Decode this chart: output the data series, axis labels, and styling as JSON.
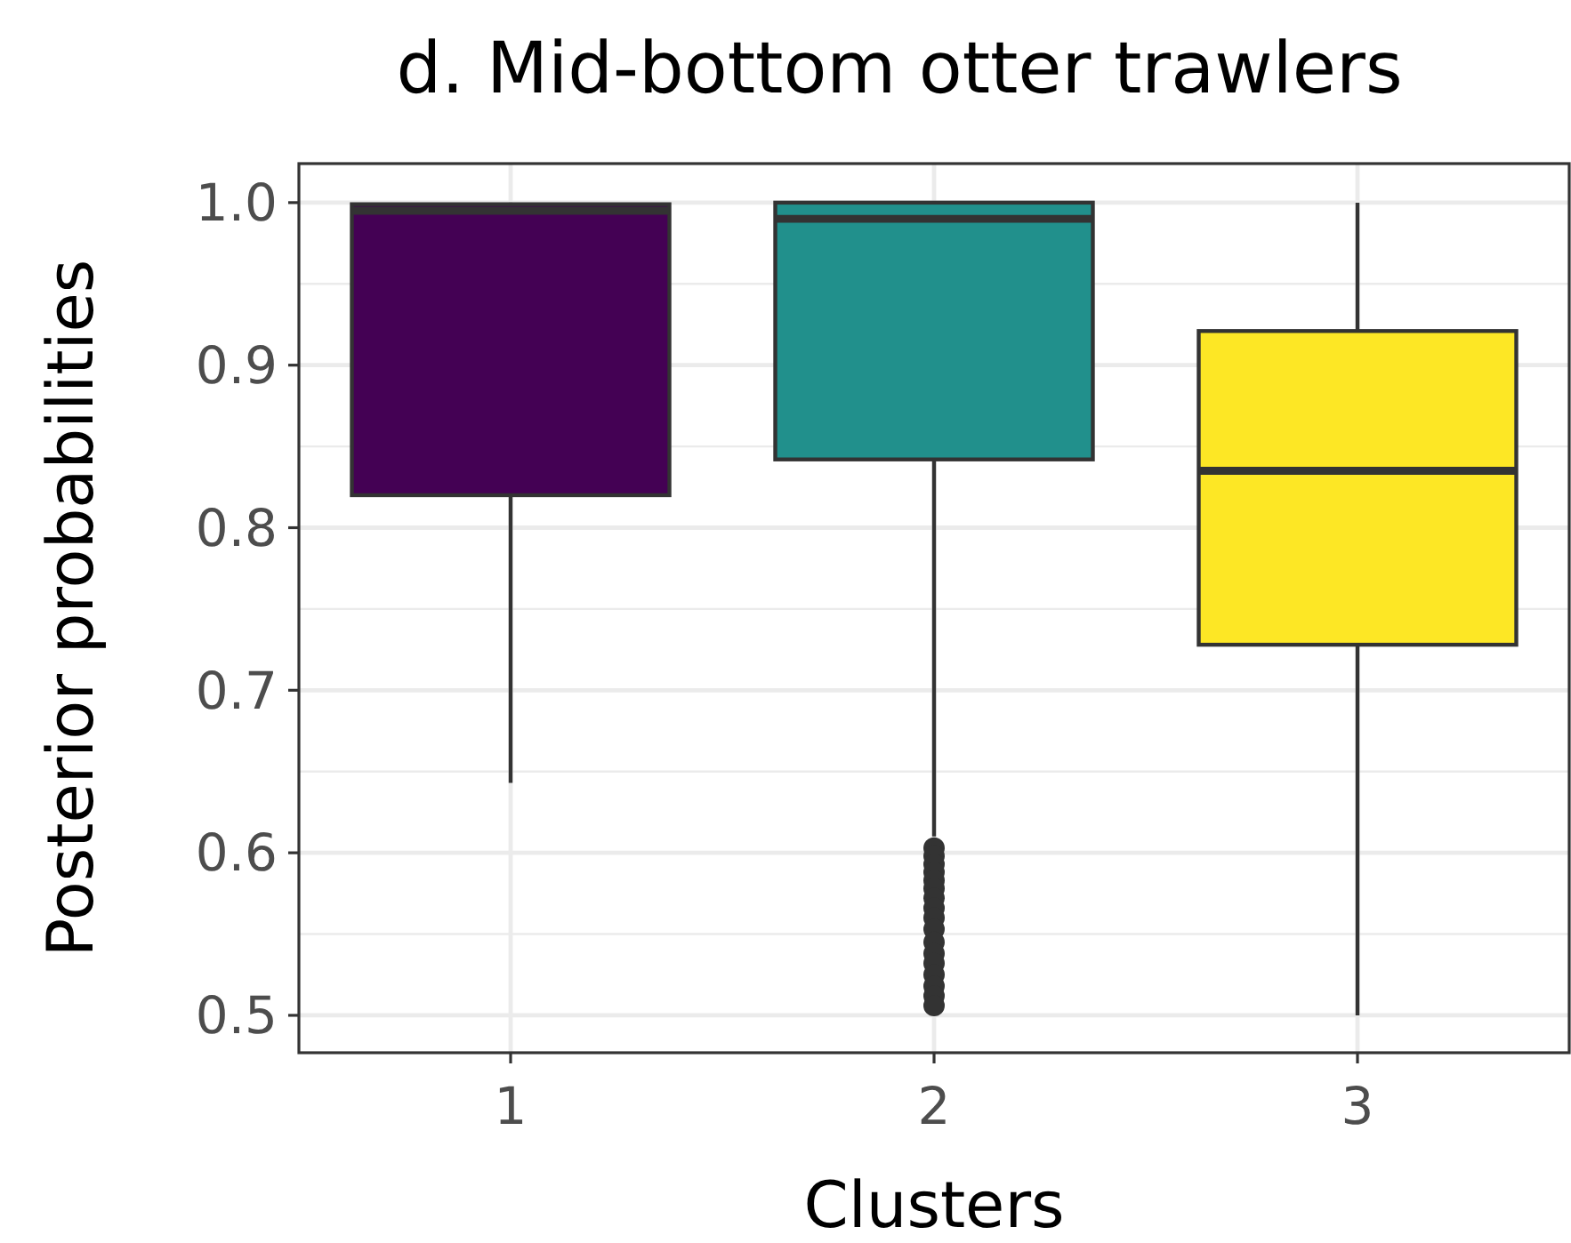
{
  "chart_data": {
    "type": "box",
    "title": "d. Mid-bottom otter trawlers",
    "xlabel": "Clusters",
    "ylabel": "Posterior probabilities",
    "categories": [
      "1",
      "2",
      "3"
    ],
    "colors": [
      "#440154",
      "#21908c",
      "#fde725"
    ],
    "boxes": [
      {
        "low": 0.643,
        "q1": 0.82,
        "median": 0.995,
        "q3": 0.999,
        "high": 1.0
      },
      {
        "low": 0.61,
        "q1": 0.842,
        "median": 0.99,
        "q3": 1.0,
        "high": 1.0,
        "outliers": [
          0.603,
          0.598,
          0.593,
          0.588,
          0.583,
          0.578,
          0.572,
          0.566,
          0.56,
          0.553,
          0.545,
          0.538,
          0.532,
          0.525,
          0.518,
          0.512,
          0.506
        ]
      },
      {
        "low": 0.5,
        "q1": 0.728,
        "median": 0.835,
        "q3": 0.921,
        "high": 1.0
      }
    ],
    "ylim": [
      0.477,
      1.024
    ],
    "yticks": [
      0.5,
      0.6,
      0.7,
      0.8,
      0.9,
      {
        "value": 1,
        "label": "1.0"
      }
    ],
    "grid": true
  }
}
